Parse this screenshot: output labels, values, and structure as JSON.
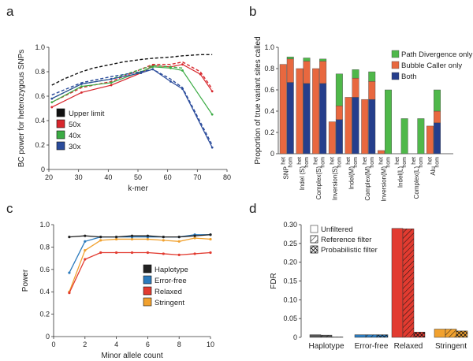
{
  "chart_data": [
    {
      "panel": "a",
      "type": "line",
      "xlabel": "k-mer",
      "ylabel": "BC power for heterozygous SNPs",
      "xlim": [
        20,
        80
      ],
      "ylim": [
        0,
        1.0
      ],
      "xticks": [
        20,
        30,
        40,
        50,
        60,
        70,
        80
      ],
      "yticks": [
        0,
        0.2,
        0.4,
        0.6,
        0.8,
        1.0
      ],
      "legend": [
        "Upper limit",
        "50x",
        "40x",
        "30x"
      ],
      "series": [
        {
          "name": "Upper limit",
          "color": "#111111",
          "style": "dashed",
          "markers": false,
          "x": [
            21,
            25,
            31,
            35,
            41,
            45,
            51,
            55,
            61,
            65,
            71,
            75
          ],
          "y": [
            0.69,
            0.74,
            0.8,
            0.83,
            0.86,
            0.88,
            0.9,
            0.91,
            0.92,
            0.93,
            0.94,
            0.94
          ]
        },
        {
          "name": "50x",
          "color": "#d7262c",
          "style": "solid",
          "markers": true,
          "x": [
            21,
            31,
            41,
            51,
            55,
            61,
            65,
            71,
            75
          ],
          "y": [
            0.51,
            0.63,
            0.69,
            0.79,
            0.85,
            0.84,
            0.86,
            0.78,
            0.64
          ]
        },
        {
          "name": "50x dashed",
          "color": "#d7262c",
          "style": "dashed",
          "markers": false,
          "x": [
            21,
            31,
            41,
            51,
            55,
            61,
            65,
            71,
            75
          ],
          "y": [
            0.55,
            0.67,
            0.72,
            0.82,
            0.86,
            0.86,
            0.88,
            0.8,
            0.66
          ]
        },
        {
          "name": "40x",
          "color": "#3bab44",
          "style": "solid",
          "markers": true,
          "x": [
            21,
            31,
            41,
            51,
            55,
            61,
            65,
            75
          ],
          "y": [
            0.55,
            0.68,
            0.71,
            0.8,
            0.84,
            0.83,
            0.81,
            0.45
          ]
        },
        {
          "name": "40x dashed",
          "color": "#3bab44",
          "style": "dashed",
          "markers": false,
          "x": [
            21,
            31,
            41,
            51,
            55,
            61,
            65
          ],
          "y": [
            0.58,
            0.7,
            0.74,
            0.82,
            0.85,
            0.84,
            0.83
          ]
        },
        {
          "name": "30x",
          "color": "#2a4b9b",
          "style": "solid",
          "markers": true,
          "x": [
            21,
            31,
            41,
            51,
            55,
            61,
            65,
            75
          ],
          "y": [
            0.58,
            0.7,
            0.74,
            0.79,
            0.82,
            0.72,
            0.66,
            0.18
          ]
        },
        {
          "name": "30x dashed",
          "color": "#2a4b9b",
          "style": "dashed",
          "markers": false,
          "x": [
            21,
            31,
            41,
            51,
            55,
            61,
            65,
            75
          ],
          "y": [
            0.61,
            0.71,
            0.76,
            0.8,
            0.82,
            0.74,
            0.67,
            0.2
          ]
        }
      ]
    },
    {
      "panel": "b",
      "type": "bar",
      "ylabel": "Proportion of true variant sites called",
      "ylim": [
        0,
        1.0
      ],
      "yticks": [
        0,
        0.2,
        0.4,
        0.6,
        0.8,
        1.0
      ],
      "categories": [
        "SNP",
        "Indel (S)",
        "Complex(S)",
        "Inversion(S)",
        "Indel(M)",
        "Complex(M)",
        "Inversion(M)",
        "Indel(L)",
        "Complex(L)",
        "Alu"
      ],
      "sublabels": [
        "het",
        "hom"
      ],
      "legend": [
        "Path Divergence only",
        "Bubble Caller only",
        "Both"
      ],
      "colors": {
        "Path Divergence only": "#4fb84a",
        "Bubble Caller only": "#e8683f",
        "Both": "#253e8c"
      },
      "bars": [
        {
          "category": "SNP",
          "sub": "het",
          "both": 0.0,
          "bubble": 0.84,
          "path": 0.0
        },
        {
          "category": "SNP",
          "sub": "hom",
          "both": 0.67,
          "bubble": 0.22,
          "path": 0.02
        },
        {
          "category": "Indel (S)",
          "sub": "het",
          "both": 0.0,
          "bubble": 0.8,
          "path": 0.0
        },
        {
          "category": "Indel (S)",
          "sub": "hom",
          "both": 0.66,
          "bubble": 0.21,
          "path": 0.03
        },
        {
          "category": "Complex(S)",
          "sub": "het",
          "both": 0.0,
          "bubble": 0.8,
          "path": 0.0
        },
        {
          "category": "Complex(S)",
          "sub": "hom",
          "both": 0.66,
          "bubble": 0.21,
          "path": 0.02
        },
        {
          "category": "Inversion(S)",
          "sub": "het",
          "both": 0.0,
          "bubble": 0.3,
          "path": 0.0
        },
        {
          "category": "Inversion(S)",
          "sub": "hom",
          "both": 0.32,
          "bubble": 0.13,
          "path": 0.3
        },
        {
          "category": "Indel(M)",
          "sub": "het",
          "both": 0.0,
          "bubble": 0.53,
          "path": 0.0
        },
        {
          "category": "Indel(M)",
          "sub": "hom",
          "both": 0.53,
          "bubble": 0.18,
          "path": 0.08
        },
        {
          "category": "Complex(M)",
          "sub": "het",
          "both": 0.0,
          "bubble": 0.51,
          "path": 0.0
        },
        {
          "category": "Complex(M)",
          "sub": "hom",
          "both": 0.51,
          "bubble": 0.17,
          "path": 0.09
        },
        {
          "category": "Inversion(M)",
          "sub": "het",
          "both": 0.0,
          "bubble": 0.03,
          "path": 0.0
        },
        {
          "category": "Inversion(M)",
          "sub": "hom",
          "both": 0.0,
          "bubble": 0.0,
          "path": 0.6
        },
        {
          "category": "Indel(L)",
          "sub": "het",
          "both": 0.0,
          "bubble": 0.0,
          "path": 0.0
        },
        {
          "category": "Indel(L)",
          "sub": "hom",
          "both": 0.0,
          "bubble": 0.0,
          "path": 0.33
        },
        {
          "category": "Complex(L)",
          "sub": "het",
          "both": 0.0,
          "bubble": 0.0,
          "path": 0.0
        },
        {
          "category": "Complex(L)",
          "sub": "hom",
          "both": 0.0,
          "bubble": 0.0,
          "path": 0.33
        },
        {
          "category": "Alu",
          "sub": "het",
          "both": 0.0,
          "bubble": 0.26,
          "path": 0.0
        },
        {
          "category": "Alu",
          "sub": "hom",
          "both": 0.29,
          "bubble": 0.11,
          "path": 0.2
        }
      ]
    },
    {
      "panel": "c",
      "type": "line",
      "xlabel": "Minor allele count",
      "ylabel": "Power",
      "xlim": [
        0,
        10
      ],
      "ylim": [
        0,
        1.0
      ],
      "xticks": [
        0,
        2,
        4,
        6,
        8,
        10
      ],
      "yticks": [
        0,
        0.2,
        0.4,
        0.6,
        0.8,
        1.0
      ],
      "legend": [
        "Haplotype",
        "Error-free",
        "Relaxed",
        "Stringent"
      ],
      "series": [
        {
          "name": "Haplotype",
          "color": "#222222",
          "x": [
            1,
            2,
            3,
            4,
            5,
            6,
            7,
            8,
            9,
            10
          ],
          "y": [
            0.89,
            0.9,
            0.89,
            0.89,
            0.9,
            0.9,
            0.89,
            0.89,
            0.9,
            0.91
          ]
        },
        {
          "name": "Error-free",
          "color": "#2c7bbd",
          "x": [
            1,
            2,
            3,
            4,
            5,
            6,
            7,
            8,
            9,
            10
          ],
          "y": [
            0.57,
            0.85,
            0.89,
            0.89,
            0.89,
            0.89,
            0.89,
            0.89,
            0.91,
            0.91
          ]
        },
        {
          "name": "Relaxed",
          "color": "#e23b30",
          "x": [
            1,
            2,
            3,
            4,
            5,
            6,
            7,
            8,
            9,
            10
          ],
          "y": [
            0.39,
            0.69,
            0.75,
            0.75,
            0.75,
            0.75,
            0.74,
            0.73,
            0.74,
            0.75
          ]
        },
        {
          "name": "Stringent",
          "color": "#f1a12e",
          "x": [
            1,
            2,
            3,
            4,
            5,
            6,
            7,
            8,
            9,
            10
          ],
          "y": [
            0.4,
            0.77,
            0.86,
            0.87,
            0.87,
            0.87,
            0.86,
            0.85,
            0.88,
            0.87
          ]
        }
      ]
    },
    {
      "panel": "d",
      "type": "bar",
      "ylabel": "FDR",
      "ylim": [
        0,
        0.3
      ],
      "yticks": [
        0,
        0.05,
        0.1,
        0.15,
        0.2,
        0.25,
        0.3
      ],
      "categories": [
        "Haplotype",
        "Error-free",
        "Relaxed",
        "Stringent"
      ],
      "legend": [
        "Unfiltered",
        "Reference filter",
        "Probabilistic filter"
      ],
      "series": [
        {
          "name": "Unfiltered",
          "values": [
            0.007,
            0.007,
            0.29,
            0.022
          ]
        },
        {
          "name": "Reference filter",
          "values": [
            0.006,
            0.007,
            0.289,
            0.022
          ]
        },
        {
          "name": "Probabilistic filter",
          "values": [
            0.001,
            0.007,
            0.014,
            0.017
          ]
        }
      ],
      "colors": {
        "Haplotype": "#555555",
        "Error-free": "#2c7bbd",
        "Relaxed": "#e23b30",
        "Stringent": "#f1a12e"
      }
    }
  ]
}
